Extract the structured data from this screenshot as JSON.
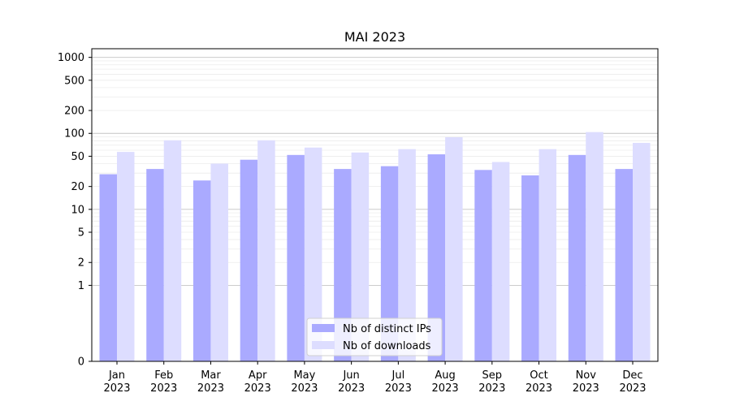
{
  "chart_data": {
    "type": "bar",
    "title": "MAI 2023",
    "xlabel": "",
    "ylabel": "",
    "y_scale": "symlog",
    "ylim": [
      0,
      1300
    ],
    "y_ticks": [
      0,
      1,
      2,
      5,
      10,
      20,
      50,
      100,
      200,
      500,
      1000
    ],
    "grid": true,
    "legend_position": "bottom-center",
    "categories": [
      {
        "month": "Jan",
        "year": "2023"
      },
      {
        "month": "Feb",
        "year": "2023"
      },
      {
        "month": "Mar",
        "year": "2023"
      },
      {
        "month": "Apr",
        "year": "2023"
      },
      {
        "month": "May",
        "year": "2023"
      },
      {
        "month": "Jun",
        "year": "2023"
      },
      {
        "month": "Jul",
        "year": "2023"
      },
      {
        "month": "Aug",
        "year": "2023"
      },
      {
        "month": "Sep",
        "year": "2023"
      },
      {
        "month": "Oct",
        "year": "2023"
      },
      {
        "month": "Nov",
        "year": "2023"
      },
      {
        "month": "Dec",
        "year": "2023"
      }
    ],
    "series": [
      {
        "name": "Nb of distinct IPs",
        "color": "#aaaaff",
        "values": [
          29,
          34,
          24,
          45,
          52,
          34,
          37,
          53,
          33,
          28,
          52,
          34
        ]
      },
      {
        "name": "Nb of downloads",
        "color": "#ddddff",
        "values": [
          57,
          81,
          40,
          81,
          65,
          56,
          62,
          89,
          42,
          62,
          104,
          75
        ]
      }
    ]
  }
}
